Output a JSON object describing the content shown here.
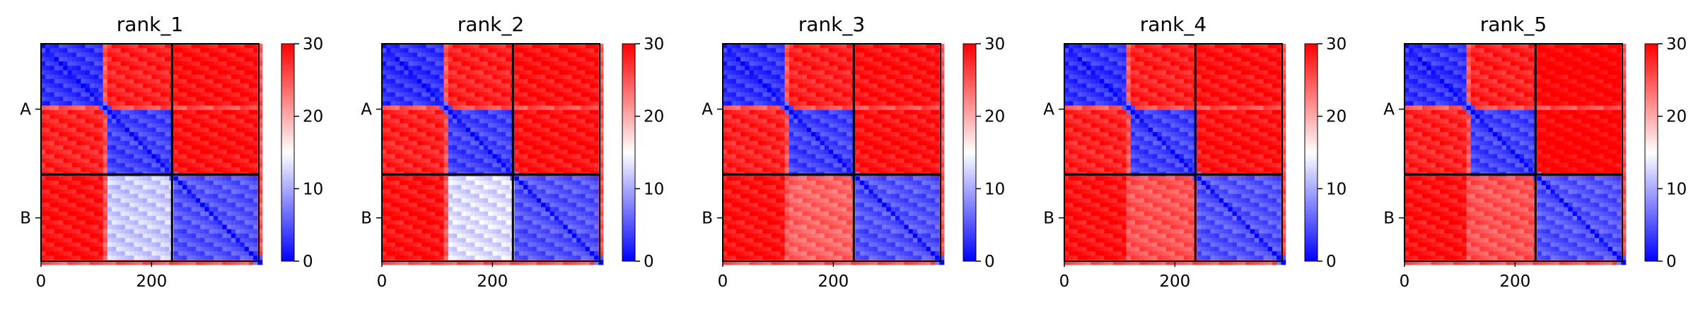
{
  "figure": {
    "colormap": "bwr",
    "colors": {
      "low": "#0000ff",
      "mid": "#ffffff",
      "high": "#ff0000",
      "frame": "#000000"
    }
  },
  "chart_data": [
    {
      "type": "heatmap",
      "title": "rank_1",
      "chains": [
        "A",
        "B"
      ],
      "chain_boundary": 237,
      "length": 394,
      "xticks": [
        0,
        200
      ],
      "xtick_labels": [
        "0",
        "200"
      ],
      "ytick_labels": [
        "A",
        "B"
      ],
      "colorbar": {
        "range": [
          0,
          30
        ],
        "ticks": [
          0,
          10,
          20,
          30
        ],
        "tick_labels": [
          "0",
          "10",
          "20",
          "30"
        ]
      },
      "domains": [
        [
          0,
          110
        ],
        [
          118,
          237
        ],
        [
          237,
          394
        ]
      ],
      "intra_values": [
        [
          3,
          28,
          28
        ],
        [
          28,
          4,
          28
        ],
        [
          28,
          28,
          5
        ]
      ],
      "inter_values": {
        "A-B": [
          [
            29,
            29,
            29
          ],
          [
            29,
            14,
            29
          ]
        ],
        "B-A": [
          [
            29,
            12,
            29
          ]
        ]
      }
    },
    {
      "type": "heatmap",
      "title": "rank_2",
      "chains": [
        "A",
        "B"
      ],
      "chain_boundary": 237,
      "length": 394,
      "xticks": [
        0,
        200
      ],
      "xtick_labels": [
        "0",
        "200"
      ],
      "ytick_labels": [
        "A",
        "B"
      ],
      "colorbar": {
        "range": [
          0,
          30
        ],
        "ticks": [
          0,
          10,
          20,
          30
        ],
        "tick_labels": [
          "0",
          "10",
          "20",
          "30"
        ]
      },
      "domains": [
        [
          0,
          110
        ],
        [
          118,
          237
        ],
        [
          237,
          394
        ]
      ],
      "intra_values": [
        [
          3,
          28,
          28
        ],
        [
          28,
          4,
          28
        ],
        [
          28,
          28,
          5
        ]
      ],
      "inter_values": {
        "A-B": [
          [
            29,
            29,
            29
          ],
          [
            29,
            16,
            29
          ]
        ],
        "B-A": [
          [
            29,
            13,
            29
          ]
        ]
      }
    },
    {
      "type": "heatmap",
      "title": "rank_3",
      "chains": [
        "A",
        "B"
      ],
      "chain_boundary": 237,
      "length": 394,
      "xticks": [
        0,
        200
      ],
      "xtick_labels": [
        "0",
        "200"
      ],
      "ytick_labels": [
        "A",
        "B"
      ],
      "colorbar": {
        "range": [
          0,
          30
        ],
        "ticks": [
          0,
          10,
          20,
          30
        ],
        "tick_labels": [
          "0",
          "10",
          "20",
          "30"
        ]
      },
      "domains": [
        [
          0,
          110
        ],
        [
          118,
          237
        ],
        [
          237,
          394
        ]
      ],
      "intra_values": [
        [
          3,
          28,
          28
        ],
        [
          28,
          4,
          28
        ],
        [
          28,
          28,
          5
        ]
      ],
      "inter_values": {
        "A-B": [
          [
            29,
            29,
            29
          ],
          [
            29,
            22,
            29
          ]
        ],
        "B-A": [
          [
            29,
            24,
            29
          ]
        ]
      }
    },
    {
      "type": "heatmap",
      "title": "rank_4",
      "chains": [
        "A",
        "B"
      ],
      "chain_boundary": 237,
      "length": 394,
      "xticks": [
        0,
        200
      ],
      "xtick_labels": [
        "0",
        "200"
      ],
      "ytick_labels": [
        "A",
        "B"
      ],
      "colorbar": {
        "range": [
          0,
          30
        ],
        "ticks": [
          0,
          10,
          20,
          30
        ],
        "tick_labels": [
          "0",
          "10",
          "20",
          "30"
        ]
      },
      "domains": [
        [
          0,
          110
        ],
        [
          118,
          237
        ],
        [
          237,
          394
        ]
      ],
      "intra_values": [
        [
          3,
          28,
          28
        ],
        [
          28,
          4,
          28
        ],
        [
          28,
          28,
          5
        ]
      ],
      "inter_values": {
        "A-B": [
          [
            29,
            29,
            29
          ],
          [
            29,
            20,
            29
          ]
        ],
        "B-A": [
          [
            29,
            25,
            29
          ]
        ]
      }
    },
    {
      "type": "heatmap",
      "title": "rank_5",
      "chains": [
        "A",
        "B"
      ],
      "chain_boundary": 237,
      "length": 394,
      "xticks": [
        0,
        200
      ],
      "xtick_labels": [
        "0",
        "200"
      ],
      "ytick_labels": [
        "A",
        "B"
      ],
      "colorbar": {
        "range": [
          0,
          30
        ],
        "ticks": [
          0,
          10,
          20,
          30
        ],
        "tick_labels": [
          "0",
          "10",
          "20",
          "30"
        ]
      },
      "domains": [
        [
          0,
          110
        ],
        [
          118,
          237
        ],
        [
          237,
          394
        ]
      ],
      "intra_values": [
        [
          3,
          28,
          28
        ],
        [
          28,
          4,
          28
        ],
        [
          28,
          28,
          5
        ]
      ],
      "inter_values": {
        "A-B": [
          [
            30,
            30,
            30
          ],
          [
            30,
            30,
            30
          ]
        ],
        "B-A": [
          [
            29,
            25,
            29
          ]
        ]
      }
    }
  ]
}
